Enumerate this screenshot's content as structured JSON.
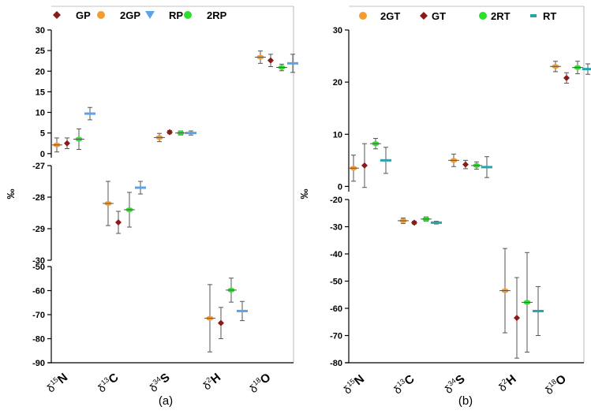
{
  "unit_label": "‰",
  "chart_data": [
    {
      "type": "scatter",
      "panel_label": "(a)",
      "ylabel": "‰",
      "categories": [
        "δ15N",
        "δ13C",
        "δ34S",
        "δ2H",
        "δ18O"
      ],
      "category_labels": [
        {
          "delta": "δ",
          "sup": "15",
          "element": "N"
        },
        {
          "delta": "δ",
          "sup": "13",
          "element": "C"
        },
        {
          "delta": "δ",
          "sup": "34",
          "element": "S"
        },
        {
          "delta": "δ",
          "sup": "2",
          "element": "H"
        },
        {
          "delta": "δ",
          "sup": "18",
          "element": "O"
        }
      ],
      "legend_placement": "top",
      "axis_segments": [
        {
          "ylim": [
            -1,
            30
          ],
          "ticks": [
            0,
            5,
            10,
            15,
            20,
            25,
            30
          ],
          "tick_labels": [
            "0",
            "5",
            "10",
            "15",
            "20",
            "25",
            "30"
          ]
        },
        {
          "ylim": [
            -30,
            -27
          ],
          "ticks": [
            -27,
            -28,
            -29,
            -30
          ],
          "tick_labels": [
            "-27",
            "-28",
            "-29",
            "-30"
          ]
        },
        {
          "ylim": [
            -90,
            -50
          ],
          "ticks": [
            -50,
            -60,
            -70,
            -80,
            -90
          ],
          "tick_labels": [
            "-50",
            "-60",
            "-70",
            "-80",
            "-90"
          ]
        }
      ],
      "series": [
        {
          "name": "GP",
          "color": "#8b1a1a",
          "marker": "diamond",
          "points": [
            {
              "category": "δ15N",
              "y": 2.5,
              "err": 1.3
            },
            {
              "category": "δ13C",
              "y": -28.8,
              "err": 0.35
            },
            {
              "category": "δ34S",
              "y": 5.2,
              "err": 0.4
            },
            {
              "category": "δ2H",
              "y": -73.5,
              "err": 6.5
            },
            {
              "category": "δ18O",
              "y": 22.6,
              "err": 1.5
            }
          ]
        },
        {
          "name": "2GP",
          "color": "#f39c2f",
          "marker": "circle",
          "points": [
            {
              "category": "δ15N",
              "y": 2.1,
              "err": 1.7
            },
            {
              "category": "δ13C",
              "y": -28.2,
              "err": 0.7
            },
            {
              "category": "δ34S",
              "y": 3.9,
              "err": 1.0
            },
            {
              "category": "δ2H",
              "y": -71.5,
              "err": 14
            },
            {
              "category": "δ18O",
              "y": 23.4,
              "err": 1.5
            }
          ]
        },
        {
          "name": "RP",
          "color": "#5ba3e6",
          "marker": "triangle-down",
          "points": [
            {
              "category": "δ15N",
              "y": 9.7,
              "err": 1.5
            },
            {
              "category": "δ13C",
              "y": -27.7,
              "err": 0.2
            },
            {
              "category": "δ34S",
              "y": 5.0,
              "err": 0.5
            },
            {
              "category": "δ2H",
              "y": -68.5,
              "err": 4.0
            },
            {
              "category": "δ18O",
              "y": 21.9,
              "err": 2.2
            }
          ]
        },
        {
          "name": "2RP",
          "color": "#2ee02e",
          "marker": "circle",
          "points": [
            {
              "category": "δ15N",
              "y": 3.5,
              "err": 2.5
            },
            {
              "category": "δ13C",
              "y": -28.4,
              "err": 0.55
            },
            {
              "category": "δ34S",
              "y": 5.0,
              "err": 0.5
            },
            {
              "category": "δ2H",
              "y": -59.8,
              "err": 5.0
            },
            {
              "category": "δ18O",
              "y": 20.9,
              "err": 0.8
            }
          ]
        }
      ]
    },
    {
      "type": "scatter",
      "panel_label": "(b)",
      "ylabel": "‰",
      "categories": [
        "δ15N",
        "δ13C",
        "δ34S",
        "δ2H",
        "δ18O"
      ],
      "category_labels": [
        {
          "delta": "δ",
          "sup": "15",
          "element": "N"
        },
        {
          "delta": "δ",
          "sup": "13",
          "element": "C"
        },
        {
          "delta": "δ",
          "sup": "34",
          "element": "S"
        },
        {
          "delta": "δ",
          "sup": "2",
          "element": "H"
        },
        {
          "delta": "δ",
          "sup": "18",
          "element": "O"
        }
      ],
      "legend_placement": "top",
      "axis_segments": [
        {
          "ylim": [
            -1,
            30
          ],
          "ticks": [
            0,
            10,
            20,
            30
          ],
          "tick_labels": [
            "0",
            "10",
            "20",
            "30"
          ]
        },
        {
          "ylim": [
            -80,
            -20
          ],
          "ticks": [
            -20,
            -30,
            -40,
            -50,
            -60,
            -70,
            -80
          ],
          "tick_labels": [
            "-20",
            "-30",
            "-40",
            "-50",
            "-60",
            "-70",
            "-80"
          ]
        }
      ],
      "series": [
        {
          "name": "2GT",
          "color": "#f39c2f",
          "marker": "circle",
          "points": [
            {
              "category": "δ15N",
              "y": 3.5,
              "err": 2.5
            },
            {
              "category": "δ13C",
              "y": -27.8,
              "err": 1.0
            },
            {
              "category": "δ34S",
              "y": 5.0,
              "err": 1.2
            },
            {
              "category": "δ2H",
              "y": -53.5,
              "err": 15.5
            },
            {
              "category": "δ18O",
              "y": 23.0,
              "err": 1.0
            }
          ]
        },
        {
          "name": "GT",
          "color": "#8b1a1a",
          "marker": "diamond",
          "points": [
            {
              "category": "δ15N",
              "y": 4.0,
              "err": 4.2
            },
            {
              "category": "δ13C",
              "y": -28.5,
              "err": 0.5
            },
            {
              "category": "δ34S",
              "y": 4.2,
              "err": 0.8
            },
            {
              "category": "δ2H",
              "y": -63.5,
              "err": 14.8
            },
            {
              "category": "δ18O",
              "y": 20.8,
              "err": 1.0
            }
          ]
        },
        {
          "name": "2RT",
          "color": "#2ee02e",
          "marker": "circle",
          "points": [
            {
              "category": "δ15N",
              "y": 8.2,
              "err": 1.0
            },
            {
              "category": "δ13C",
              "y": -27.2,
              "err": 0.8
            },
            {
              "category": "δ34S",
              "y": 4.0,
              "err": 0.7
            },
            {
              "category": "δ2H",
              "y": -57.8,
              "err": 18.3
            },
            {
              "category": "δ18O",
              "y": 22.8,
              "err": 1.2
            }
          ]
        },
        {
          "name": "RT",
          "color": "#2aa4ac",
          "marker": "line",
          "points": [
            {
              "category": "δ15N",
              "y": 5.0,
              "err": 2.5
            },
            {
              "category": "δ13C",
              "y": -28.5,
              "err": 0.5
            },
            {
              "category": "δ34S",
              "y": 3.7,
              "err": 2.0
            },
            {
              "category": "δ2H",
              "y": -61.0,
              "err": 9.0
            },
            {
              "category": "δ18O",
              "y": 22.5,
              "err": 1.0
            }
          ]
        }
      ]
    }
  ]
}
